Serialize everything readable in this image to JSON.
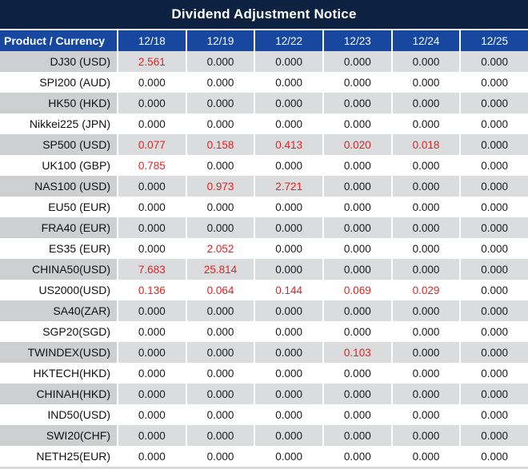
{
  "title": "Dividend Adjustment Notice",
  "colors": {
    "title_bg": "#0d2240",
    "header_bg": "#17479e",
    "row_gray": "#dbdcdd",
    "row_gray_first": "#cdcfd0",
    "red": "#e8201f",
    "text": "#1a1a1a"
  },
  "table": {
    "header": {
      "product_label": "Product / Currency",
      "dates": [
        "12/18",
        "12/19",
        "12/22",
        "12/23",
        "12/24",
        "12/25"
      ]
    },
    "rows": [
      {
        "product": "DJ30 (USD)",
        "values": [
          "2.561",
          "0.000",
          "0.000",
          "0.000",
          "0.000",
          "0.000"
        ],
        "red": [
          true,
          false,
          false,
          false,
          false,
          false
        ]
      },
      {
        "product": "SPI200 (AUD)",
        "values": [
          "0.000",
          "0.000",
          "0.000",
          "0.000",
          "0.000",
          "0.000"
        ],
        "red": [
          false,
          false,
          false,
          false,
          false,
          false
        ]
      },
      {
        "product": "HK50 (HKD)",
        "values": [
          "0.000",
          "0.000",
          "0.000",
          "0.000",
          "0.000",
          "0.000"
        ],
        "red": [
          false,
          false,
          false,
          false,
          false,
          false
        ]
      },
      {
        "product": "Nikkei225 (JPN)",
        "values": [
          "0.000",
          "0.000",
          "0.000",
          "0.000",
          "0.000",
          "0.000"
        ],
        "red": [
          false,
          false,
          false,
          false,
          false,
          false
        ]
      },
      {
        "product": "SP500 (USD)",
        "values": [
          "0.077",
          "0.158",
          "0.413",
          "0.020",
          "0.018",
          "0.000"
        ],
        "red": [
          true,
          true,
          true,
          true,
          true,
          false
        ]
      },
      {
        "product": "UK100 (GBP)",
        "values": [
          "0.785",
          "0.000",
          "0.000",
          "0.000",
          "0.000",
          "0.000"
        ],
        "red": [
          true,
          false,
          false,
          false,
          false,
          false
        ]
      },
      {
        "product": "NAS100 (USD)",
        "values": [
          "0.000",
          "0.973",
          "2.721",
          "0.000",
          "0.000",
          "0.000"
        ],
        "red": [
          false,
          true,
          true,
          false,
          false,
          false
        ]
      },
      {
        "product": "EU50 (EUR)",
        "values": [
          "0.000",
          "0.000",
          "0.000",
          "0.000",
          "0.000",
          "0.000"
        ],
        "red": [
          false,
          false,
          false,
          false,
          false,
          false
        ]
      },
      {
        "product": "FRA40 (EUR)",
        "values": [
          "0.000",
          "0.000",
          "0.000",
          "0.000",
          "0.000",
          "0.000"
        ],
        "red": [
          false,
          false,
          false,
          false,
          false,
          false
        ]
      },
      {
        "product": "ES35 (EUR)",
        "values": [
          "0.000",
          "2.052",
          "0.000",
          "0.000",
          "0.000",
          "0.000"
        ],
        "red": [
          false,
          true,
          false,
          false,
          false,
          false
        ]
      },
      {
        "product": "CHINA50(USD)",
        "values": [
          "7.683",
          "25.814",
          "0.000",
          "0.000",
          "0.000",
          "0.000"
        ],
        "red": [
          true,
          true,
          false,
          false,
          false,
          false
        ]
      },
      {
        "product": "US2000(USD)",
        "values": [
          "0.136",
          "0.064",
          "0.144",
          "0.069",
          "0.029",
          "0.000"
        ],
        "red": [
          true,
          true,
          true,
          true,
          true,
          false
        ]
      },
      {
        "product": "SA40(ZAR)",
        "values": [
          "0.000",
          "0.000",
          "0.000",
          "0.000",
          "0.000",
          "0.000"
        ],
        "red": [
          false,
          false,
          false,
          false,
          false,
          false
        ]
      },
      {
        "product": "SGP20(SGD)",
        "values": [
          "0.000",
          "0.000",
          "0.000",
          "0.000",
          "0.000",
          "0.000"
        ],
        "red": [
          false,
          false,
          false,
          false,
          false,
          false
        ]
      },
      {
        "product": "TWINDEX(USD)",
        "values": [
          "0.000",
          "0.000",
          "0.000",
          "0.103",
          "0.000",
          "0.000"
        ],
        "red": [
          false,
          false,
          false,
          true,
          false,
          false
        ]
      },
      {
        "product": "HKTECH(HKD)",
        "values": [
          "0.000",
          "0.000",
          "0.000",
          "0.000",
          "0.000",
          "0.000"
        ],
        "red": [
          false,
          false,
          false,
          false,
          false,
          false
        ]
      },
      {
        "product": "CHINAH(HKD)",
        "values": [
          "0.000",
          "0.000",
          "0.000",
          "0.000",
          "0.000",
          "0.000"
        ],
        "red": [
          false,
          false,
          false,
          false,
          false,
          false
        ]
      },
      {
        "product": "IND50(USD)",
        "values": [
          "0.000",
          "0.000",
          "0.000",
          "0.000",
          "0.000",
          "0.000"
        ],
        "red": [
          false,
          false,
          false,
          false,
          false,
          false
        ]
      },
      {
        "product": "SWI20(CHF)",
        "values": [
          "0.000",
          "0.000",
          "0.000",
          "0.000",
          "0.000",
          "0.000"
        ],
        "red": [
          false,
          false,
          false,
          false,
          false,
          false
        ]
      },
      {
        "product": "NETH25(EUR)",
        "values": [
          "0.000",
          "0.000",
          "0.000",
          "0.000",
          "0.000",
          "0.000"
        ],
        "red": [
          false,
          false,
          false,
          false,
          false,
          false
        ]
      }
    ]
  }
}
